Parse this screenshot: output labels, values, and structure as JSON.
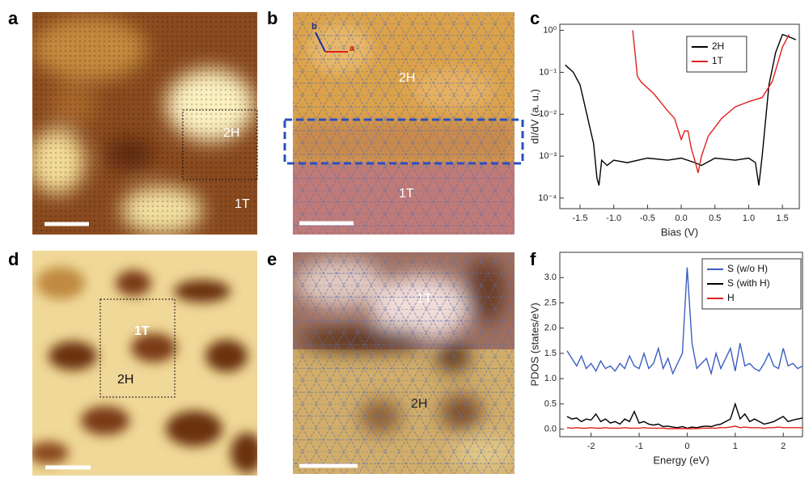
{
  "panels": [
    {
      "letter": "a",
      "labels": [
        "2H",
        "1T"
      ]
    },
    {
      "letter": "b",
      "labels": [
        "2H",
        "1T",
        "b",
        "a"
      ]
    },
    {
      "letter": "d",
      "labels": [
        "1T",
        "2H"
      ]
    },
    {
      "letter": "e",
      "labels": [
        "1T",
        "2H"
      ]
    }
  ],
  "chart_data": [
    {
      "panel": "c",
      "type": "line",
      "x_label": "Bias (V)",
      "y_label": "dI/dV (a. u.)",
      "log_y": true,
      "legend": "upper center",
      "xlim": [
        -1.8,
        1.75
      ],
      "ylim": [
        5.6e-05,
        1.4
      ],
      "xticks": [
        -1.5,
        {
          "value": -1,
          "label": "-1.0"
        },
        -0.5,
        {
          "value": 0,
          "label": "0.0"
        },
        0.5,
        {
          "value": 1,
          "label": "1.0"
        },
        1.5
      ],
      "yticks": [
        {
          "value": 0.0001,
          "label": "10⁻⁴"
        },
        {
          "value": 0.001,
          "label": "10⁻³"
        },
        {
          "value": 0.01,
          "label": "10⁻²"
        },
        {
          "value": 0.1,
          "label": "10⁻¹"
        },
        {
          "value": 1,
          "label": "10⁰"
        }
      ],
      "series": [
        {
          "name": "2H",
          "color": "#000000",
          "x": [
            -1.72,
            -1.6,
            -1.5,
            -1.4,
            -1.3,
            -1.25,
            -1.22,
            -1.18,
            -1.1,
            -1.0,
            -0.8,
            -0.5,
            -0.2,
            0,
            0.2,
            0.3,
            0.5,
            0.8,
            1.0,
            1.1,
            1.15,
            1.2,
            1.3,
            1.4,
            1.5,
            1.6,
            1.7
          ],
          "values": [
            0.15,
            0.1,
            0.05,
            0.01,
            0.002,
            0.0003,
            0.0002,
            0.0008,
            0.0006,
            0.0008,
            0.0007,
            0.0009,
            0.0008,
            0.0009,
            0.0007,
            0.0006,
            0.0009,
            0.0008,
            0.0009,
            0.0007,
            0.0002,
            0.001,
            0.05,
            0.3,
            0.8,
            0.7,
            0.6
          ]
        },
        {
          "name": "1T",
          "color": "#e0201b",
          "x": [
            -0.72,
            -0.65,
            -0.6,
            -0.4,
            -0.2,
            -0.1,
            0,
            0.05,
            0.1,
            0.15,
            0.2,
            0.25,
            0.3,
            0.4,
            0.6,
            0.8,
            1.0,
            1.2,
            1.35,
            1.5,
            1.6
          ],
          "values": [
            1.0,
            0.08,
            0.06,
            0.03,
            0.012,
            0.008,
            0.0025,
            0.004,
            0.004,
            0.0015,
            0.0008,
            0.0004,
            0.001,
            0.003,
            0.008,
            0.015,
            0.02,
            0.025,
            0.06,
            0.4,
            0.8
          ]
        }
      ]
    },
    {
      "panel": "f",
      "type": "line",
      "x_label": "Energy (eV)",
      "y_label": "PDOS (states/eV)",
      "log_y": false,
      "legend": "upper right",
      "xlim": [
        -2.65,
        2.4
      ],
      "ylim": [
        -0.15,
        3.5
      ],
      "xticks": [
        -2,
        -1,
        0,
        1,
        2
      ],
      "yticks": [
        {
          "value": 0,
          "label": "0.0"
        },
        0.5,
        {
          "value": 1,
          "label": "1.0"
        },
        1.5,
        {
          "value": 2,
          "label": "2.0"
        },
        2.5,
        {
          "value": 3,
          "label": "3.0"
        }
      ],
      "x": [
        -2.5,
        -2.4,
        -2.3,
        -2.2,
        -2.1,
        -2.0,
        -1.9,
        -1.8,
        -1.7,
        -1.6,
        -1.5,
        -1.4,
        -1.3,
        -1.2,
        -1.1,
        -1.0,
        -0.9,
        -0.8,
        -0.7,
        -0.6,
        -0.5,
        -0.4,
        -0.3,
        -0.2,
        -0.1,
        0,
        0.1,
        0.2,
        0.3,
        0.4,
        0.5,
        0.6,
        0.7,
        0.8,
        0.9,
        1.0,
        1.1,
        1.2,
        1.3,
        1.4,
        1.5,
        1.6,
        1.7,
        1.8,
        1.9,
        2.0,
        2.1,
        2.2,
        2.3,
        2.4
      ],
      "series": [
        {
          "name": "S (w/o H)",
          "color": "#3a5fc0",
          "values": [
            1.55,
            1.4,
            1.25,
            1.45,
            1.2,
            1.3,
            1.15,
            1.35,
            1.2,
            1.25,
            1.15,
            1.3,
            1.2,
            1.45,
            1.25,
            1.2,
            1.5,
            1.2,
            1.3,
            1.6,
            1.2,
            1.4,
            1.1,
            1.3,
            1.5,
            3.2,
            1.7,
            1.2,
            1.3,
            1.4,
            1.1,
            1.5,
            1.2,
            1.4,
            1.6,
            1.15,
            1.7,
            1.25,
            1.3,
            1.2,
            1.15,
            1.3,
            1.5,
            1.25,
            1.2,
            1.6,
            1.25,
            1.3,
            1.2,
            1.25
          ]
        },
        {
          "name": "S (with H)",
          "color": "#000000",
          "values": [
            0.25,
            0.2,
            0.22,
            0.15,
            0.2,
            0.18,
            0.3,
            0.15,
            0.2,
            0.12,
            0.15,
            0.1,
            0.2,
            0.15,
            0.35,
            0.12,
            0.15,
            0.1,
            0.08,
            0.1,
            0.05,
            0.06,
            0.04,
            0.03,
            0.05,
            0.02,
            0.04,
            0.03,
            0.05,
            0.06,
            0.05,
            0.08,
            0.1,
            0.15,
            0.2,
            0.5,
            0.2,
            0.3,
            0.15,
            0.2,
            0.15,
            0.1,
            0.12,
            0.15,
            0.2,
            0.25,
            0.15,
            0.18,
            0.2,
            0.22
          ]
        },
        {
          "name": "H",
          "color": "#e0201b",
          "values": [
            0.03,
            0.02,
            0.03,
            0.02,
            0.02,
            0.03,
            0.02,
            0.02,
            0.03,
            0.02,
            0.02,
            0.02,
            0.03,
            0.02,
            0.02,
            0.02,
            0.03,
            0.02,
            0.02,
            0.02,
            0.02,
            0.01,
            0.01,
            0.01,
            0.01,
            0.01,
            0.01,
            0.01,
            0.02,
            0.02,
            0.02,
            0.02,
            0.03,
            0.03,
            0.04,
            0.06,
            0.03,
            0.04,
            0.03,
            0.03,
            0.03,
            0.02,
            0.03,
            0.03,
            0.04,
            0.03,
            0.03,
            0.03,
            0.03,
            0.03
          ]
        }
      ]
    }
  ]
}
